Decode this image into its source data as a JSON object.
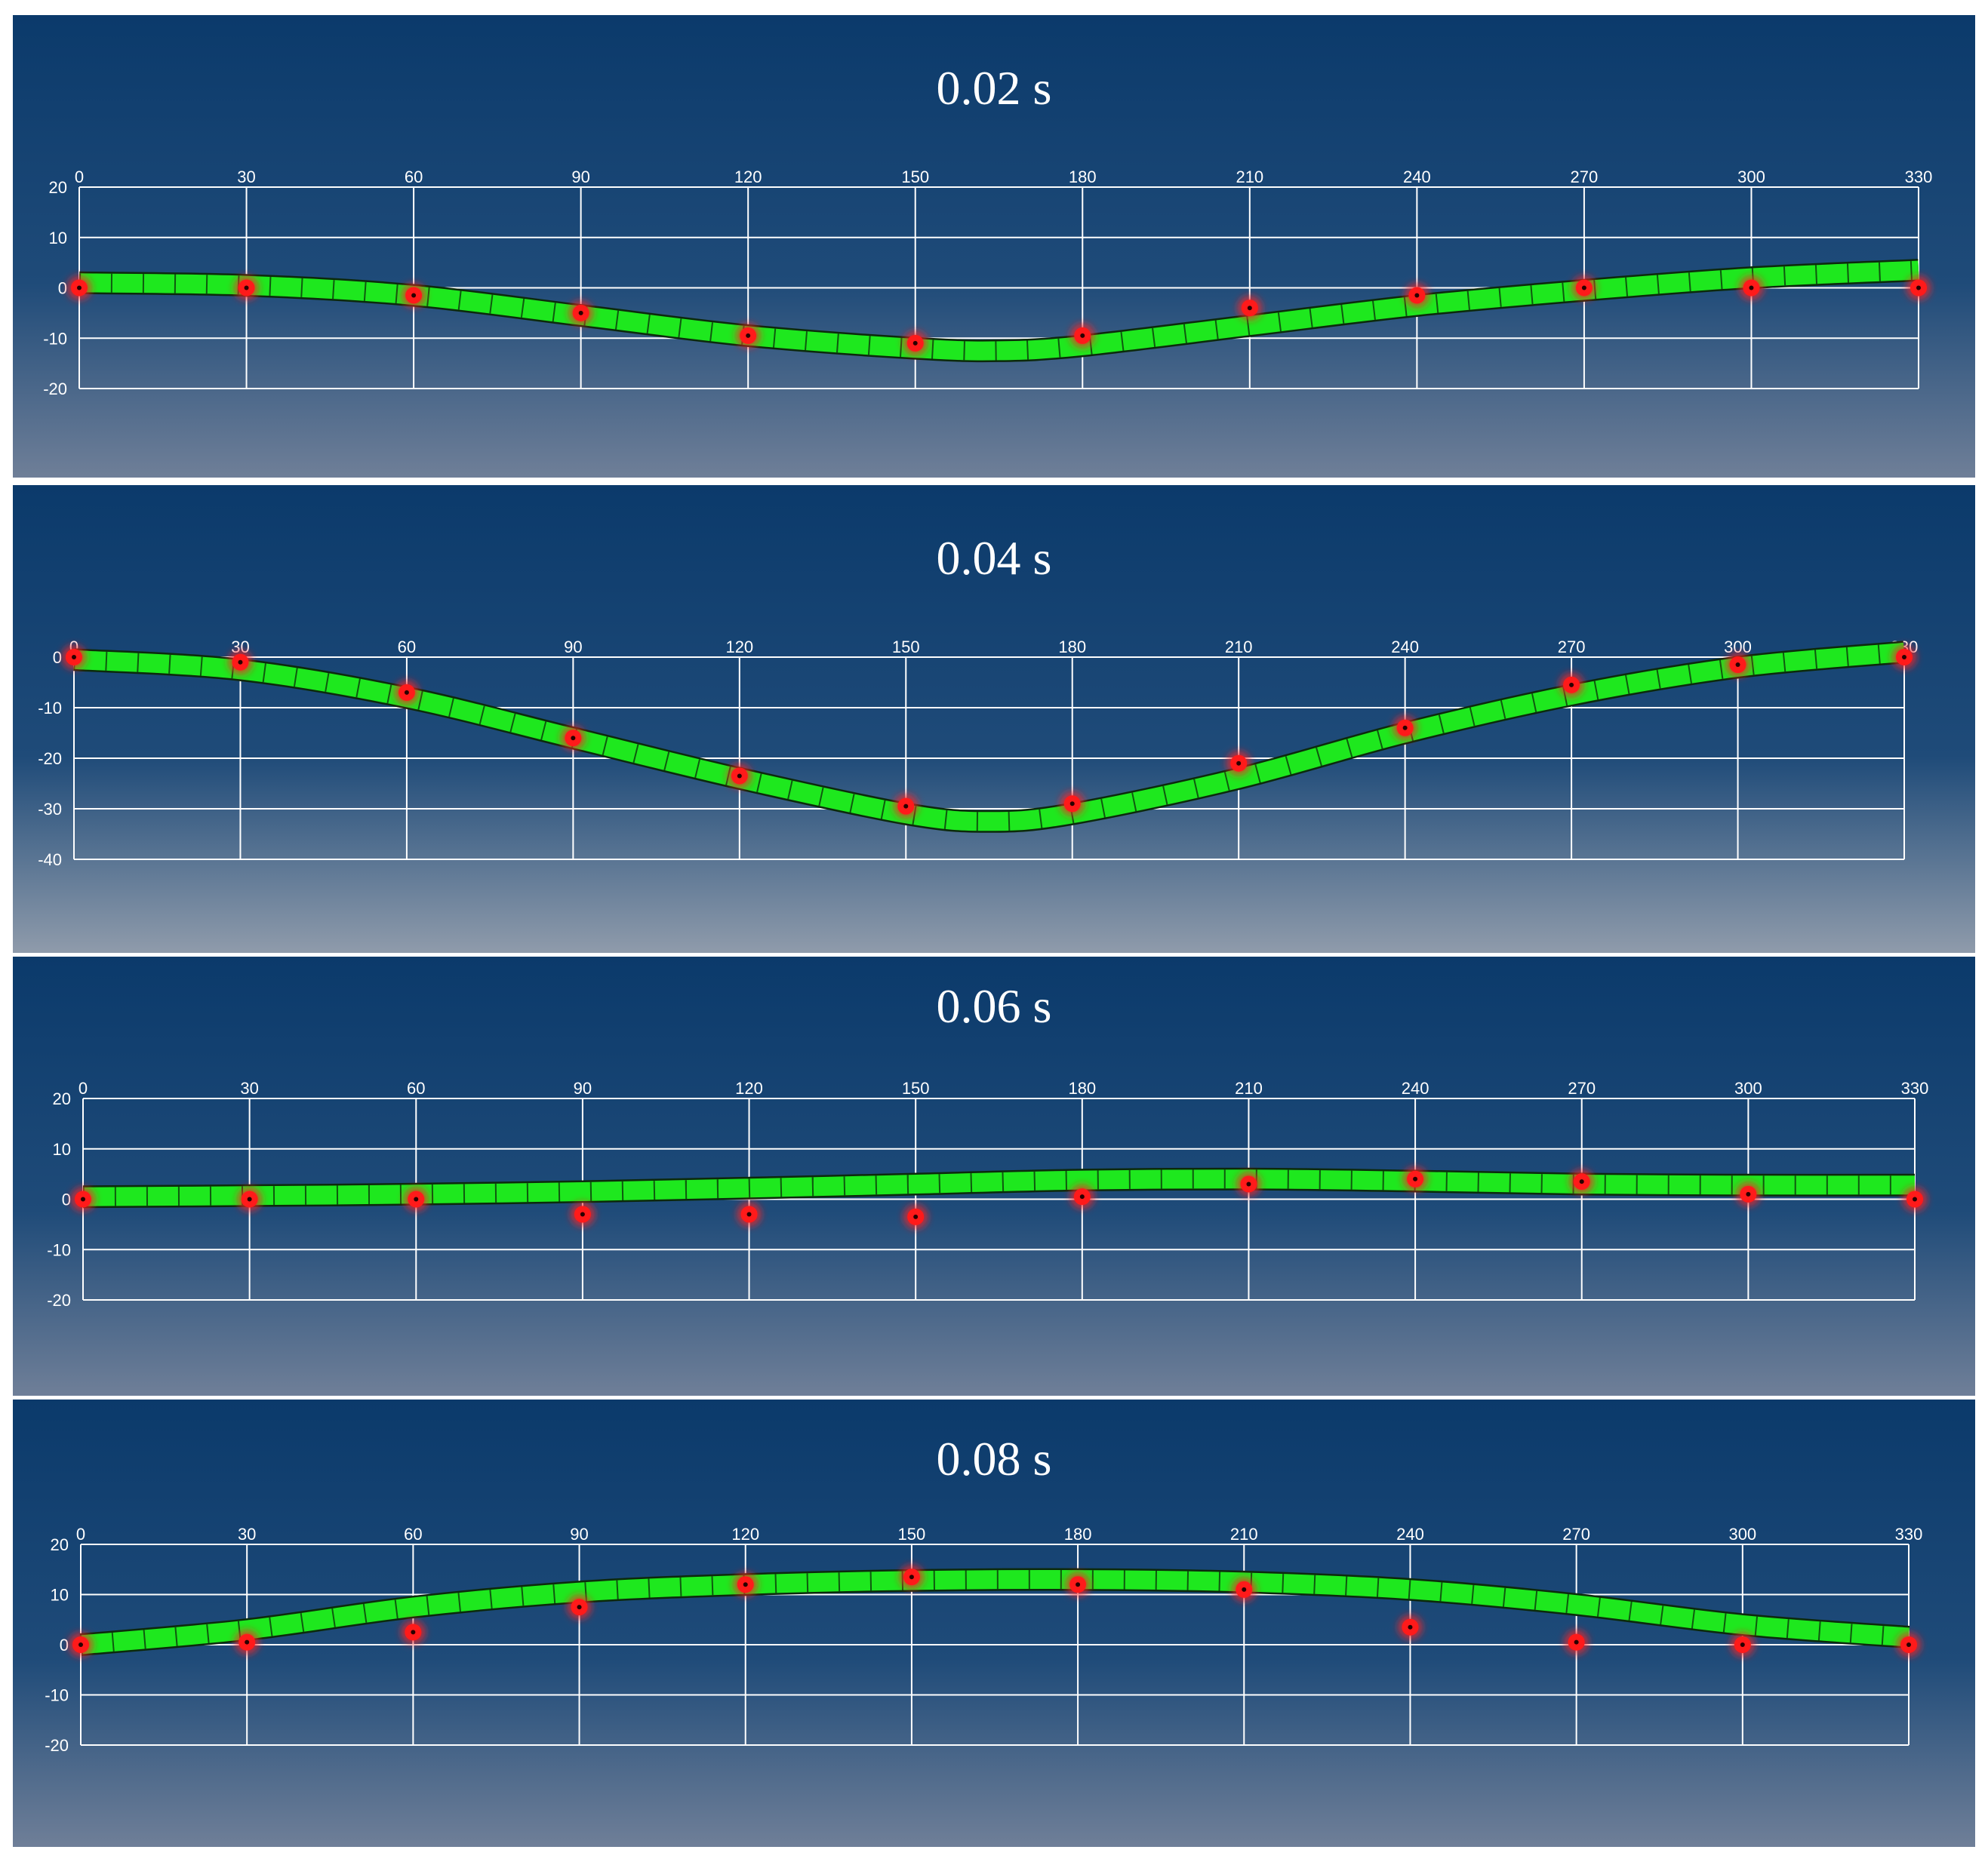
{
  "chart_data": [
    {
      "type": "line",
      "title": "0.02 s",
      "x_ticks": [
        0,
        30,
        60,
        90,
        120,
        150,
        180,
        210,
        240,
        270,
        300,
        330
      ],
      "y_ticks": [
        20,
        10,
        0,
        -10,
        -20
      ],
      "xlim": [
        0,
        330
      ],
      "ylim": [
        -20,
        20
      ],
      "grid": true,
      "series": [
        {
          "x": [
            0,
            30,
            60,
            90,
            120,
            150,
            180,
            210,
            240,
            270,
            300,
            330
          ],
          "y": [
            0,
            0,
            -1.5,
            -5,
            -9.5,
            -11,
            -9.5,
            -4,
            -1.5,
            0,
            0,
            0
          ]
        },
        {
          "x": [
            0,
            30,
            60,
            90,
            120,
            150,
            165,
            180,
            210,
            240,
            270,
            300,
            330
          ],
          "y": [
            1,
            0.5,
            -1.5,
            -5.5,
            -9.5,
            -12,
            -12.5,
            -11.5,
            -7.5,
            -3.5,
            -0.5,
            2,
            3.5
          ]
        }
      ],
      "colors": {
        "markers": "#ff1a1a",
        "band": "#1ee81e"
      }
    },
    {
      "type": "line",
      "title": "0.04 s",
      "x_ticks": [
        0,
        30,
        60,
        90,
        120,
        150,
        180,
        210,
        240,
        270,
        300,
        330
      ],
      "y_ticks": [
        0,
        -10,
        -20,
        -30,
        -40
      ],
      "xlim": [
        0,
        330
      ],
      "ylim": [
        -40,
        0
      ],
      "grid": true,
      "series": [
        {
          "x": [
            0,
            30,
            60,
            90,
            120,
            150,
            180,
            210,
            240,
            270,
            300,
            330
          ],
          "y": [
            0,
            -1,
            -7,
            -16,
            -23.5,
            -29.5,
            -29,
            -21,
            -14,
            -5.5,
            -1.5,
            0
          ]
        },
        {
          "x": [
            0,
            30,
            60,
            90,
            120,
            150,
            165,
            180,
            210,
            240,
            270,
            300,
            330
          ],
          "y": [
            -0.5,
            -2.5,
            -8,
            -16,
            -24,
            -31,
            -32.5,
            -31,
            -24,
            -15,
            -7.5,
            -2,
            1
          ]
        }
      ],
      "colors": {
        "markers": "#ff1a1a",
        "band": "#1ee81e"
      }
    },
    {
      "type": "line",
      "title": "0.06 s",
      "x_ticks": [
        0,
        30,
        60,
        90,
        120,
        150,
        180,
        210,
        240,
        270,
        300,
        330
      ],
      "y_ticks": [
        20,
        10,
        0,
        -10,
        -20
      ],
      "xlim": [
        0,
        330
      ],
      "ylim": [
        -20,
        20
      ],
      "grid": true,
      "series": [
        {
          "x": [
            0,
            30,
            60,
            90,
            120,
            150,
            180,
            210,
            240,
            270,
            300,
            330
          ],
          "y": [
            0,
            0,
            0,
            -3,
            -3,
            -3.5,
            0.5,
            3,
            4,
            3.5,
            1,
            0
          ]
        },
        {
          "x": [
            0,
            30,
            60,
            90,
            120,
            150,
            180,
            210,
            240,
            270,
            300,
            330
          ],
          "y": [
            0.5,
            0.7,
            1,
            1.5,
            2.2,
            3,
            3.8,
            4,
            3.6,
            3,
            2.8,
            2.8
          ]
        }
      ],
      "colors": {
        "markers": "#ff1a1a",
        "band": "#1ee81e"
      }
    },
    {
      "type": "line",
      "title": "0.08 s",
      "x_ticks": [
        0,
        30,
        60,
        90,
        120,
        150,
        180,
        210,
        240,
        270,
        300,
        330
      ],
      "y_ticks": [
        20,
        10,
        0,
        -10,
        -20
      ],
      "xlim": [
        0,
        330
      ],
      "ylim": [
        -20,
        20
      ],
      "grid": true,
      "series": [
        {
          "x": [
            0,
            30,
            60,
            90,
            120,
            150,
            180,
            210,
            240,
            270,
            300,
            330
          ],
          "y": [
            0,
            0.5,
            2.5,
            7.5,
            12,
            13.5,
            12,
            11,
            3.5,
            0.5,
            0,
            0
          ]
        },
        {
          "x": [
            0,
            30,
            60,
            90,
            120,
            150,
            180,
            210,
            240,
            270,
            300,
            330
          ],
          "y": [
            0,
            3,
            7.5,
            10.5,
            12,
            12.8,
            13,
            12.5,
            11,
            8,
            4,
            1.5
          ]
        }
      ],
      "colors": {
        "markers": "#ff1a1a",
        "band": "#1ee81e"
      }
    }
  ]
}
